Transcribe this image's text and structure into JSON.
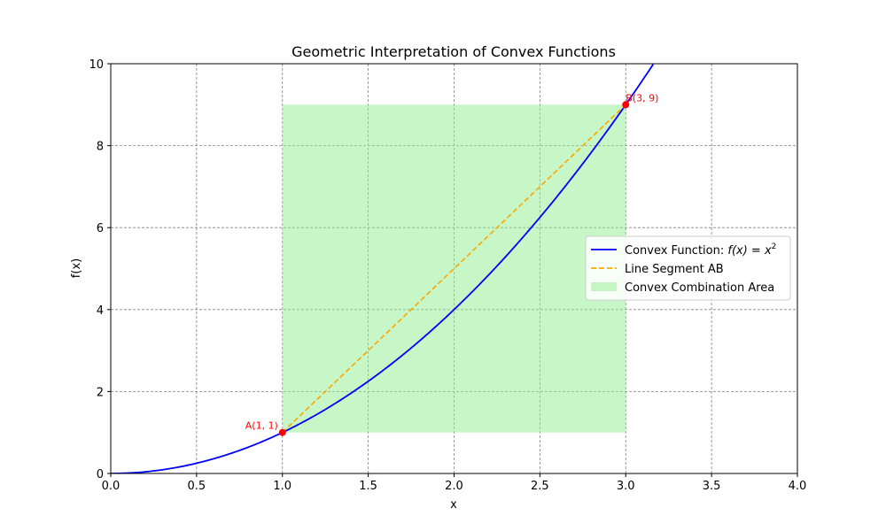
{
  "chart_data": {
    "type": "line",
    "title": "Geometric Interpretation of Convex Functions",
    "xlabel": "x",
    "ylabel": "f(x)",
    "xlim": [
      0,
      4
    ],
    "ylim": [
      0,
      10
    ],
    "xticks": [
      "0.0",
      "0.5",
      "1.0",
      "1.5",
      "2.0",
      "2.5",
      "3.0",
      "3.5",
      "4.0"
    ],
    "yticks": [
      "0",
      "2",
      "4",
      "6",
      "8",
      "10"
    ],
    "grid": true,
    "legend_position": "center-right",
    "series": [
      {
        "name": "Convex Function: f(x) = x²",
        "legend_prefix": "Convex Function: ",
        "legend_math": "f(x) = x",
        "legend_sup": "2",
        "kind": "curve",
        "color": "#0000ff",
        "x": [
          0,
          0.25,
          0.5,
          0.75,
          1,
          1.25,
          1.5,
          1.75,
          2,
          2.25,
          2.5,
          2.75,
          3,
          3.16
        ],
        "y": [
          0,
          0.0625,
          0.25,
          0.5625,
          1,
          1.5625,
          2.25,
          3.0625,
          4,
          5.0625,
          6.25,
          7.5625,
          9,
          10
        ]
      },
      {
        "name": "Line Segment AB",
        "kind": "dashed",
        "color": "#ffa500",
        "x": [
          1,
          3
        ],
        "y": [
          1,
          9
        ]
      },
      {
        "name": "Convex Combination Area",
        "kind": "area",
        "color": "#90ee90",
        "x": [
          1,
          3
        ],
        "y": [
          1,
          9
        ]
      }
    ],
    "points": [
      {
        "label": "A(1, 1)",
        "x": 1,
        "y": 1,
        "color": "#ff0000"
      },
      {
        "label": "B(3, 9)",
        "x": 3,
        "y": 9,
        "color": "#ff0000"
      }
    ]
  }
}
